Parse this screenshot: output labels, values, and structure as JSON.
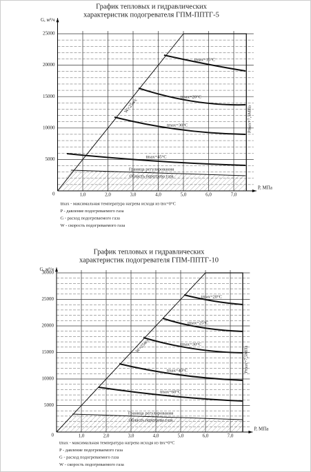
{
  "chart_data": [
    {
      "type": "line",
      "title": [
        "График тепловых и гидравлических",
        "характеристик подогревателя ГПМ-ППТГ-5"
      ],
      "y_label": "G, м³/ч",
      "x_label": "P, МПа",
      "xlim": [
        0,
        8
      ],
      "xticks": [
        {
          "value": 1,
          "label": "1,0"
        },
        {
          "value": 2,
          "label": "2,0"
        },
        {
          "value": 3,
          "label": "3,0"
        },
        {
          "value": 4,
          "label": "4,0"
        },
        {
          "value": 5,
          "label": "5,0"
        },
        {
          "value": 6,
          "label": "6,0"
        },
        {
          "value": 7,
          "label": "7,0"
        }
      ],
      "ylim": [
        0,
        27500
      ],
      "yticks": [
        0,
        5000,
        10000,
        15000,
        20000,
        25000
      ],
      "grid": true,
      "series": [
        {
          "name": "tmax=15°C",
          "color": "#111",
          "x": [
            4.23,
            5.93,
            7.47
          ],
          "values": [
            21600,
            20175,
            19080
          ]
        },
        {
          "name": "tmax=20°C",
          "color": "#111",
          "x": [
            3.22,
            5.38,
            7.47
          ],
          "values": [
            16340,
            14250,
            13700
          ]
        },
        {
          "name": "tmax=30°C",
          "color": "#111",
          "x": [
            2.26,
            4.84,
            7.47
          ],
          "values": [
            11730,
            9760,
            8990
          ]
        },
        {
          "name": "tmax=45°C",
          "color": "#111",
          "x": [
            0.37,
            4.0,
            7.47
          ],
          "values": [
            5920,
            4715,
            4060
          ]
        }
      ],
      "boundary": {
        "name": "Граница регулирования",
        "color": "#111",
        "x": [
          0.53,
          7.47
        ],
        "values": [
          3290,
          2410
        ]
      },
      "speed_line": {
        "name": "W=25м/с",
        "color": "#111",
        "x": [
          0,
          5
        ],
        "values": [
          0,
          25000
        ]
      },
      "pressure_limit": {
        "name": "Pmax=7,5МПа",
        "color": "#111",
        "x": [
          5,
          7.5,
          7.5
        ],
        "values": [
          25000,
          25000,
          0
        ]
      },
      "region_label": "Область перегрева газа",
      "notes": [
        "tmax - максимальная температура нагрева исходя из tвх=0°C",
        "P - давление подогреваемого газа",
        "G - расход подогреваемого газа",
        "W - скорость подогреваемого газа"
      ]
    },
    {
      "type": "line",
      "title": [
        "График тепловых и гидравлических",
        "характеристик подогревателя ГПМ-ППТГ-10"
      ],
      "y_label": "G, м³/ч",
      "x_label": "P, МПа",
      "xlim": [
        0,
        8
      ],
      "xticks": [
        {
          "value": 1,
          "label": "1,0"
        },
        {
          "value": 2,
          "label": "2,0"
        },
        {
          "value": 3,
          "label": "3,0"
        },
        {
          "value": 4,
          "label": "4,0"
        },
        {
          "value": 5,
          "label": "5,0"
        },
        {
          "value": 6,
          "label": "6,0"
        },
        {
          "value": 7,
          "label": "7,0"
        }
      ],
      "ylim": [
        0,
        31000
      ],
      "yticks": [
        0,
        5000,
        10000,
        15000,
        20000,
        25000,
        30000
      ],
      "grid": true,
      "series": [
        {
          "name": "tmax=20°C",
          "color": "#111",
          "x": [
            5.14,
            6.33,
            7.5
          ],
          "values": [
            25840,
            24680,
            24030
          ]
        },
        {
          "name": "tmax=25°C",
          "color": "#111",
          "x": [
            4.28,
            5.78,
            7.5
          ],
          "values": [
            21430,
            19740,
            18960
          ]
        },
        {
          "name": "tmax=30°C",
          "color": "#111",
          "x": [
            3.5,
            5.5,
            7.5
          ],
          "values": [
            17790,
            15710,
            14935
          ]
        },
        {
          "name": "tmax=40°C",
          "color": "#111",
          "x": [
            2.53,
            4.94,
            7.5
          ],
          "values": [
            12860,
            10780,
            9740
          ]
        },
        {
          "name": "tmax=60°C",
          "color": "#111",
          "x": [
            1.69,
            4.67,
            7.5
          ],
          "values": [
            8440,
            6750,
            5840
          ]
        }
      ],
      "boundary": {
        "name": "Граница регулирования",
        "color": "#111",
        "x": [
          0.64,
          7.5
        ],
        "values": [
          3380,
          2340
        ]
      },
      "speed_line": {
        "name": "W=25м/с",
        "color": "#111",
        "x": [
          0,
          6
        ],
        "values": [
          0,
          30000
        ]
      },
      "pressure_limit": {
        "name": "Pmax=7,5МПа",
        "color": "#111",
        "x": [
          6,
          7.5,
          7.5
        ],
        "values": [
          30000,
          30000,
          0
        ]
      },
      "region_label": "Область перегрева газа",
      "notes": [
        "tmax - максимальная температура нагрева исходя из tвх=0°C",
        "P - давление подогреваемого газа",
        "G - расход подогреваемого газа",
        "W - скорость подогреваемого газа"
      ]
    }
  ]
}
